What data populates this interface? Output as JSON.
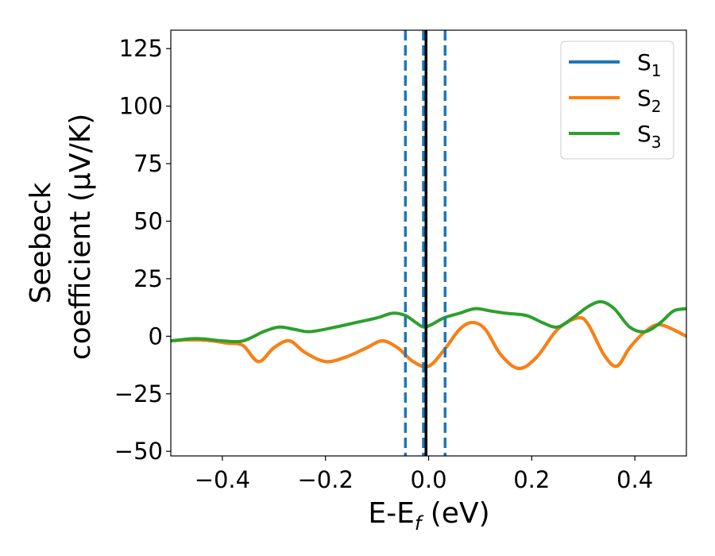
{
  "chart_data": {
    "type": "line",
    "xlabel_main": "E-E",
    "xlabel_sub": "f",
    "xlabel_tail": " (eV)",
    "ylabel_line1": "Seebeck",
    "ylabel_line2": "coefficient  (μV/K)",
    "xlim": [
      -0.5,
      0.5
    ],
    "ylim": [
      -52,
      133
    ],
    "x_ticks": [
      -0.4,
      -0.2,
      0.0,
      0.2,
      0.4
    ],
    "x_tick_labels": [
      "−0.4",
      "−0.2",
      "0.0",
      "0.2",
      "0.4"
    ],
    "y_ticks": [
      -50,
      -25,
      0,
      25,
      50,
      75,
      100,
      125
    ],
    "y_tick_labels": [
      "−50",
      "−25",
      "0",
      "25",
      "50",
      "75",
      "100",
      "125"
    ],
    "grid": false,
    "legend_position": "top-right",
    "series": [
      {
        "name": "S",
        "name_sub": "1",
        "color": "#1f77b4",
        "x": [
          -0.5,
          -0.46,
          -0.42,
          -0.39,
          -0.36,
          -0.33,
          -0.3,
          -0.27,
          -0.24,
          -0.2,
          -0.16,
          -0.12,
          -0.09,
          -0.06,
          -0.03,
          0.0,
          0.03,
          0.06,
          0.085,
          0.11,
          0.14,
          0.175,
          0.21,
          0.25,
          0.29,
          0.31,
          0.34,
          0.365,
          0.39,
          0.42,
          0.45,
          0.5
        ],
        "y": [
          -2,
          -1.5,
          -2,
          -3,
          -4,
          -11,
          -5,
          -2,
          -7,
          -11,
          -9,
          -5,
          -2,
          -5,
          -11,
          -13,
          -6,
          3,
          6,
          3,
          -8,
          -14,
          -9,
          3,
          8,
          5,
          -8,
          -13,
          -5,
          2,
          5,
          0
        ]
      },
      {
        "name": "S",
        "name_sub": "2",
        "color": "#ff7f0e",
        "x": [
          -0.5,
          -0.46,
          -0.42,
          -0.39,
          -0.36,
          -0.33,
          -0.3,
          -0.27,
          -0.24,
          -0.2,
          -0.16,
          -0.12,
          -0.09,
          -0.06,
          -0.03,
          0.0,
          0.03,
          0.06,
          0.085,
          0.11,
          0.14,
          0.175,
          0.21,
          0.25,
          0.29,
          0.31,
          0.34,
          0.365,
          0.39,
          0.42,
          0.45,
          0.5
        ],
        "y": [
          -2,
          -1.5,
          -2,
          -3,
          -4,
          -11,
          -5,
          -2,
          -7,
          -11,
          -9,
          -5,
          -2,
          -5,
          -11,
          -13,
          -6,
          3,
          6,
          3,
          -8,
          -14,
          -9,
          3,
          8,
          5,
          -8,
          -13,
          -5,
          2,
          5,
          0
        ]
      },
      {
        "name": "S",
        "name_sub": "3",
        "color": "#2ca02c",
        "x": [
          -0.5,
          -0.45,
          -0.4,
          -0.36,
          -0.32,
          -0.29,
          -0.26,
          -0.23,
          -0.18,
          -0.14,
          -0.1,
          -0.07,
          -0.045,
          -0.025,
          -0.01,
          0.005,
          0.03,
          0.06,
          0.09,
          0.12,
          0.15,
          0.19,
          0.22,
          0.25,
          0.28,
          0.31,
          0.335,
          0.36,
          0.39,
          0.42,
          0.45,
          0.475,
          0.5
        ],
        "y": [
          -2,
          -1,
          -2,
          -2,
          2,
          4,
          3,
          2,
          4,
          6,
          8,
          10,
          9,
          6,
          4,
          5,
          8,
          10,
          12,
          11,
          10,
          9,
          6,
          4,
          8,
          13,
          15,
          12,
          4,
          2,
          6,
          11,
          12
        ]
      }
    ],
    "reference_lines": {
      "solid_color": "#000000",
      "solid_x": [
        -0.005
      ],
      "dashed_color": "#1f77b4",
      "dashed_x": [
        -0.045,
        -0.01,
        0.032
      ]
    }
  }
}
